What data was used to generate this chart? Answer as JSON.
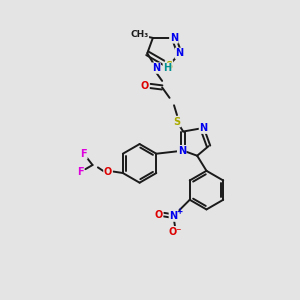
{
  "bg_color": "#e4e4e4",
  "fig_width": 3.0,
  "fig_height": 3.0,
  "dpi": 100,
  "atom_colors": {
    "C": "#1a1a1a",
    "N": "#0000ee",
    "O": "#dd0000",
    "S": "#aaaa00",
    "F": "#dd00dd",
    "H": "#009090"
  },
  "bond_color": "#1a1a1a",
  "bond_width": 1.4,
  "font_size_atom": 7.0,
  "font_size_small": 6.0
}
